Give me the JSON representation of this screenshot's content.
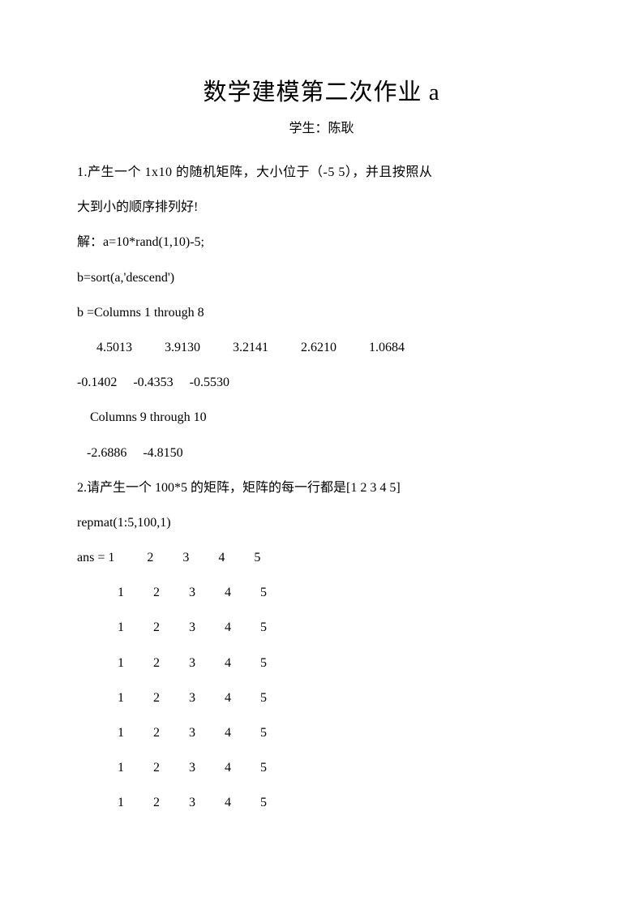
{
  "title": "数学建模第二次作业 a",
  "author": "学生：陈耿",
  "q1": {
    "line1": "1.产生一个 1x10 的随机矩阵，大小位于（-5 5），并且按照从",
    "line2": "大到小的顺序排列好!",
    "line3": "解：a=10*rand(1,10)-5;",
    "line4": "b=sort(a,'descend')",
    "line5": "b =Columns 1 through 8",
    "data_row1": "      4.5013          3.9130          3.2141          2.6210          1.0684",
    "data_row2": "-0.1402     -0.4353     -0.5530",
    "line8": "Columns 9 through 10",
    "data_row3": "   -2.6886     -4.8150"
  },
  "q2": {
    "line1": "2.请产生一个 100*5 的矩阵，矩阵的每一行都是[1 2 3 4 5]",
    "line2": "repmat(1:5,100,1)",
    "ans_first": "ans = 1          2         3         4         5",
    "rows": [
      "1         2         3         4         5",
      "1         2         3         4         5",
      "1         2         3         4         5",
      "1         2         3         4         5",
      "1         2         3         4         5",
      "1         2         3         4         5",
      "1         2         3         4         5"
    ]
  }
}
